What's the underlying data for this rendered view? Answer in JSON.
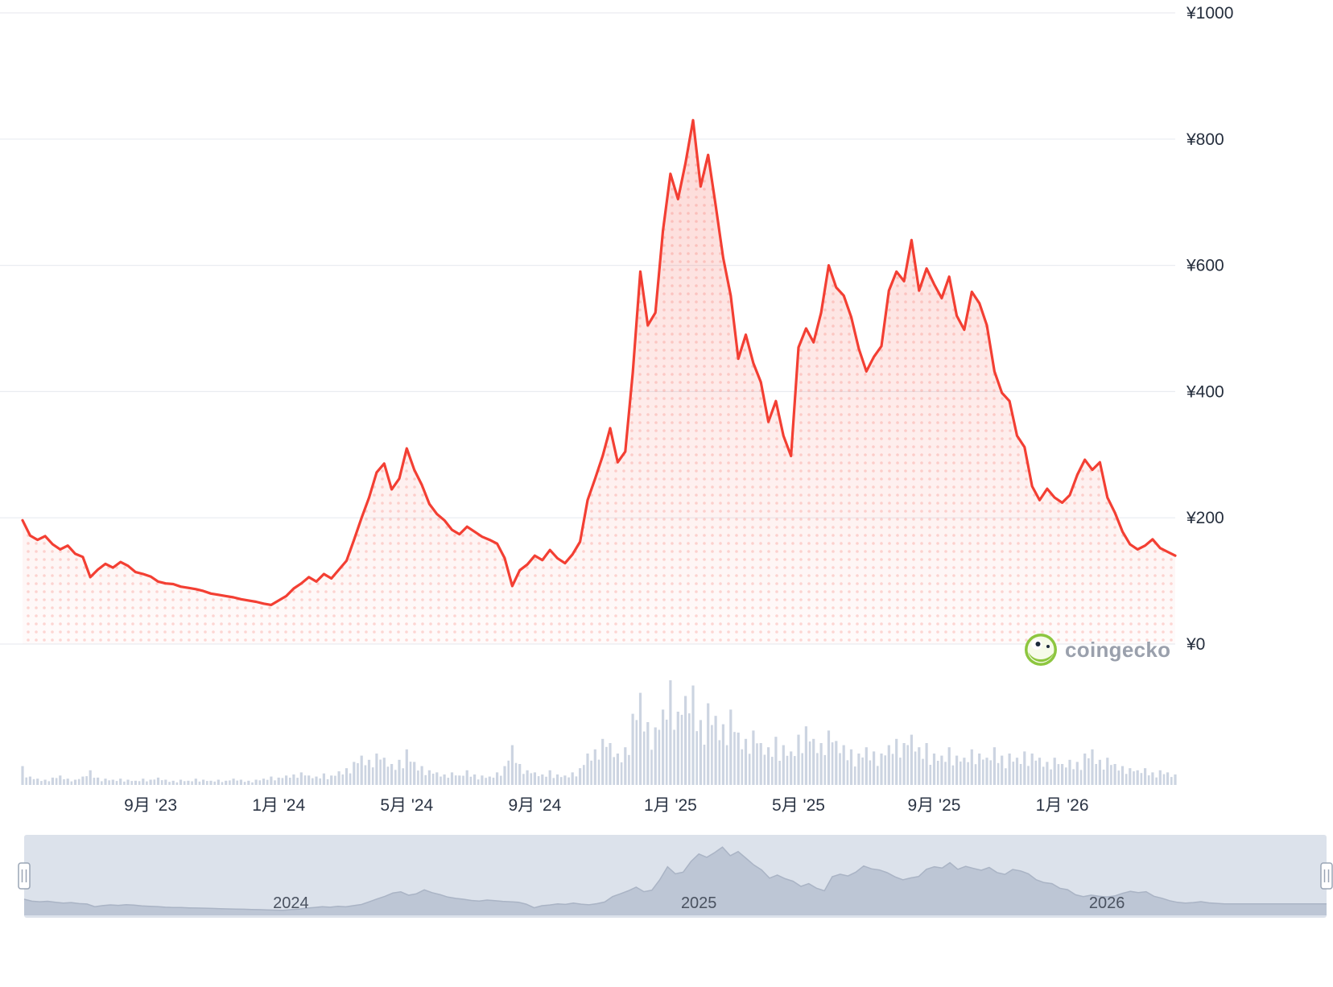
{
  "watermark": {
    "text": "coingecko"
  },
  "chart_data": {
    "type": "area",
    "title": "",
    "currency": "JPY",
    "ylim": [
      0,
      1000
    ],
    "legend": "none",
    "grid": "horizontal",
    "y_ticks": [
      {
        "label": "¥1000",
        "value": 1000
      },
      {
        "label": "¥800",
        "value": 800
      },
      {
        "label": "¥600",
        "value": 600
      },
      {
        "label": "¥400",
        "value": 400
      },
      {
        "label": "¥200",
        "value": 200
      },
      {
        "label": "¥0",
        "value": 0
      }
    ],
    "x_ticks": [
      {
        "label": "9月 '23",
        "idx": 17
      },
      {
        "label": "1月 '24",
        "idx": 34
      },
      {
        "label": "5月 '24",
        "idx": 51
      },
      {
        "label": "9月 '24",
        "idx": 68
      },
      {
        "label": "1月 '25",
        "idx": 86
      },
      {
        "label": "5月 '25",
        "idx": 103
      },
      {
        "label": "9月 '25",
        "idx": 121
      },
      {
        "label": "1月 '26",
        "idx": 138
      }
    ],
    "nav_ticks": [
      {
        "label": "2024",
        "idx": 34
      },
      {
        "label": "2025",
        "idx": 86
      },
      {
        "label": "2026",
        "idx": 138
      }
    ],
    "prices": [
      196,
      172,
      165,
      171,
      158,
      150,
      156,
      143,
      138,
      106,
      118,
      127,
      121,
      130,
      124,
      114,
      111,
      107,
      99,
      96,
      95,
      91,
      89,
      87,
      84,
      80,
      78,
      76,
      74,
      71,
      69,
      67,
      64,
      62,
      69,
      76,
      88,
      96,
      106,
      99,
      111,
      104,
      118,
      132,
      165,
      200,
      232,
      272,
      286,
      245,
      262,
      310,
      276,
      252,
      222,
      206,
      196,
      181,
      174,
      186,
      178,
      170,
      165,
      159,
      136,
      92,
      117,
      126,
      140,
      133,
      149,
      136,
      128,
      142,
      162,
      228,
      262,
      298,
      342,
      288,
      305,
      430,
      590,
      505,
      525,
      655,
      745,
      705,
      762,
      830,
      725,
      775,
      695,
      612,
      552,
      452,
      490,
      445,
      415,
      352,
      385,
      330,
      298,
      470,
      500,
      478,
      525,
      600,
      565,
      552,
      518,
      468,
      432,
      455,
      472,
      560,
      590,
      575,
      640,
      560,
      595,
      570,
      548,
      582,
      520,
      498,
      558,
      540,
      505,
      432,
      398,
      385,
      330,
      312,
      250,
      228,
      246,
      232,
      224,
      236,
      268,
      292,
      276,
      288,
      232,
      208,
      178,
      158,
      150,
      156,
      166,
      152,
      146,
      140
    ],
    "volumes": [
      18,
      8,
      6,
      5,
      7,
      9,
      6,
      5,
      8,
      14,
      7,
      6,
      5,
      6,
      5,
      4,
      6,
      5,
      7,
      5,
      4,
      5,
      4,
      6,
      5,
      4,
      5,
      4,
      6,
      5,
      4,
      5,
      6,
      8,
      7,
      9,
      10,
      12,
      9,
      8,
      11,
      9,
      13,
      16,
      22,
      28,
      24,
      30,
      26,
      20,
      24,
      34,
      22,
      18,
      14,
      12,
      10,
      12,
      9,
      14,
      10,
      9,
      8,
      12,
      18,
      38,
      20,
      14,
      12,
      10,
      14,
      10,
      9,
      12,
      16,
      30,
      34,
      44,
      40,
      30,
      36,
      68,
      88,
      60,
      55,
      72,
      100,
      70,
      85,
      95,
      62,
      78,
      66,
      58,
      72,
      50,
      44,
      52,
      40,
      36,
      46,
      38,
      32,
      48,
      56,
      44,
      40,
      52,
      42,
      38,
      34,
      30,
      36,
      32,
      30,
      38,
      44,
      40,
      48,
      36,
      40,
      30,
      28,
      36,
      28,
      26,
      34,
      30,
      26,
      36,
      28,
      30,
      26,
      32,
      30,
      26,
      22,
      26,
      20,
      24,
      22,
      30,
      34,
      24,
      26,
      20,
      18,
      16,
      14,
      16,
      12,
      14,
      12,
      10
    ],
    "colors": {
      "line": "#f33f33",
      "fill": "#f33f33",
      "volume": "#ccd4e1",
      "grid": "#e9ecf1",
      "axis_text": "#252e3d",
      "nav_bg": "#dce2eb",
      "nav_area": "#bdc6d5",
      "nav_line": "#aab4c5",
      "nav_text": "#4a5260",
      "handle_border": "#9aa5b5",
      "watermark_text": "#9aa0ac",
      "logo_green": "#8dc63f"
    }
  }
}
